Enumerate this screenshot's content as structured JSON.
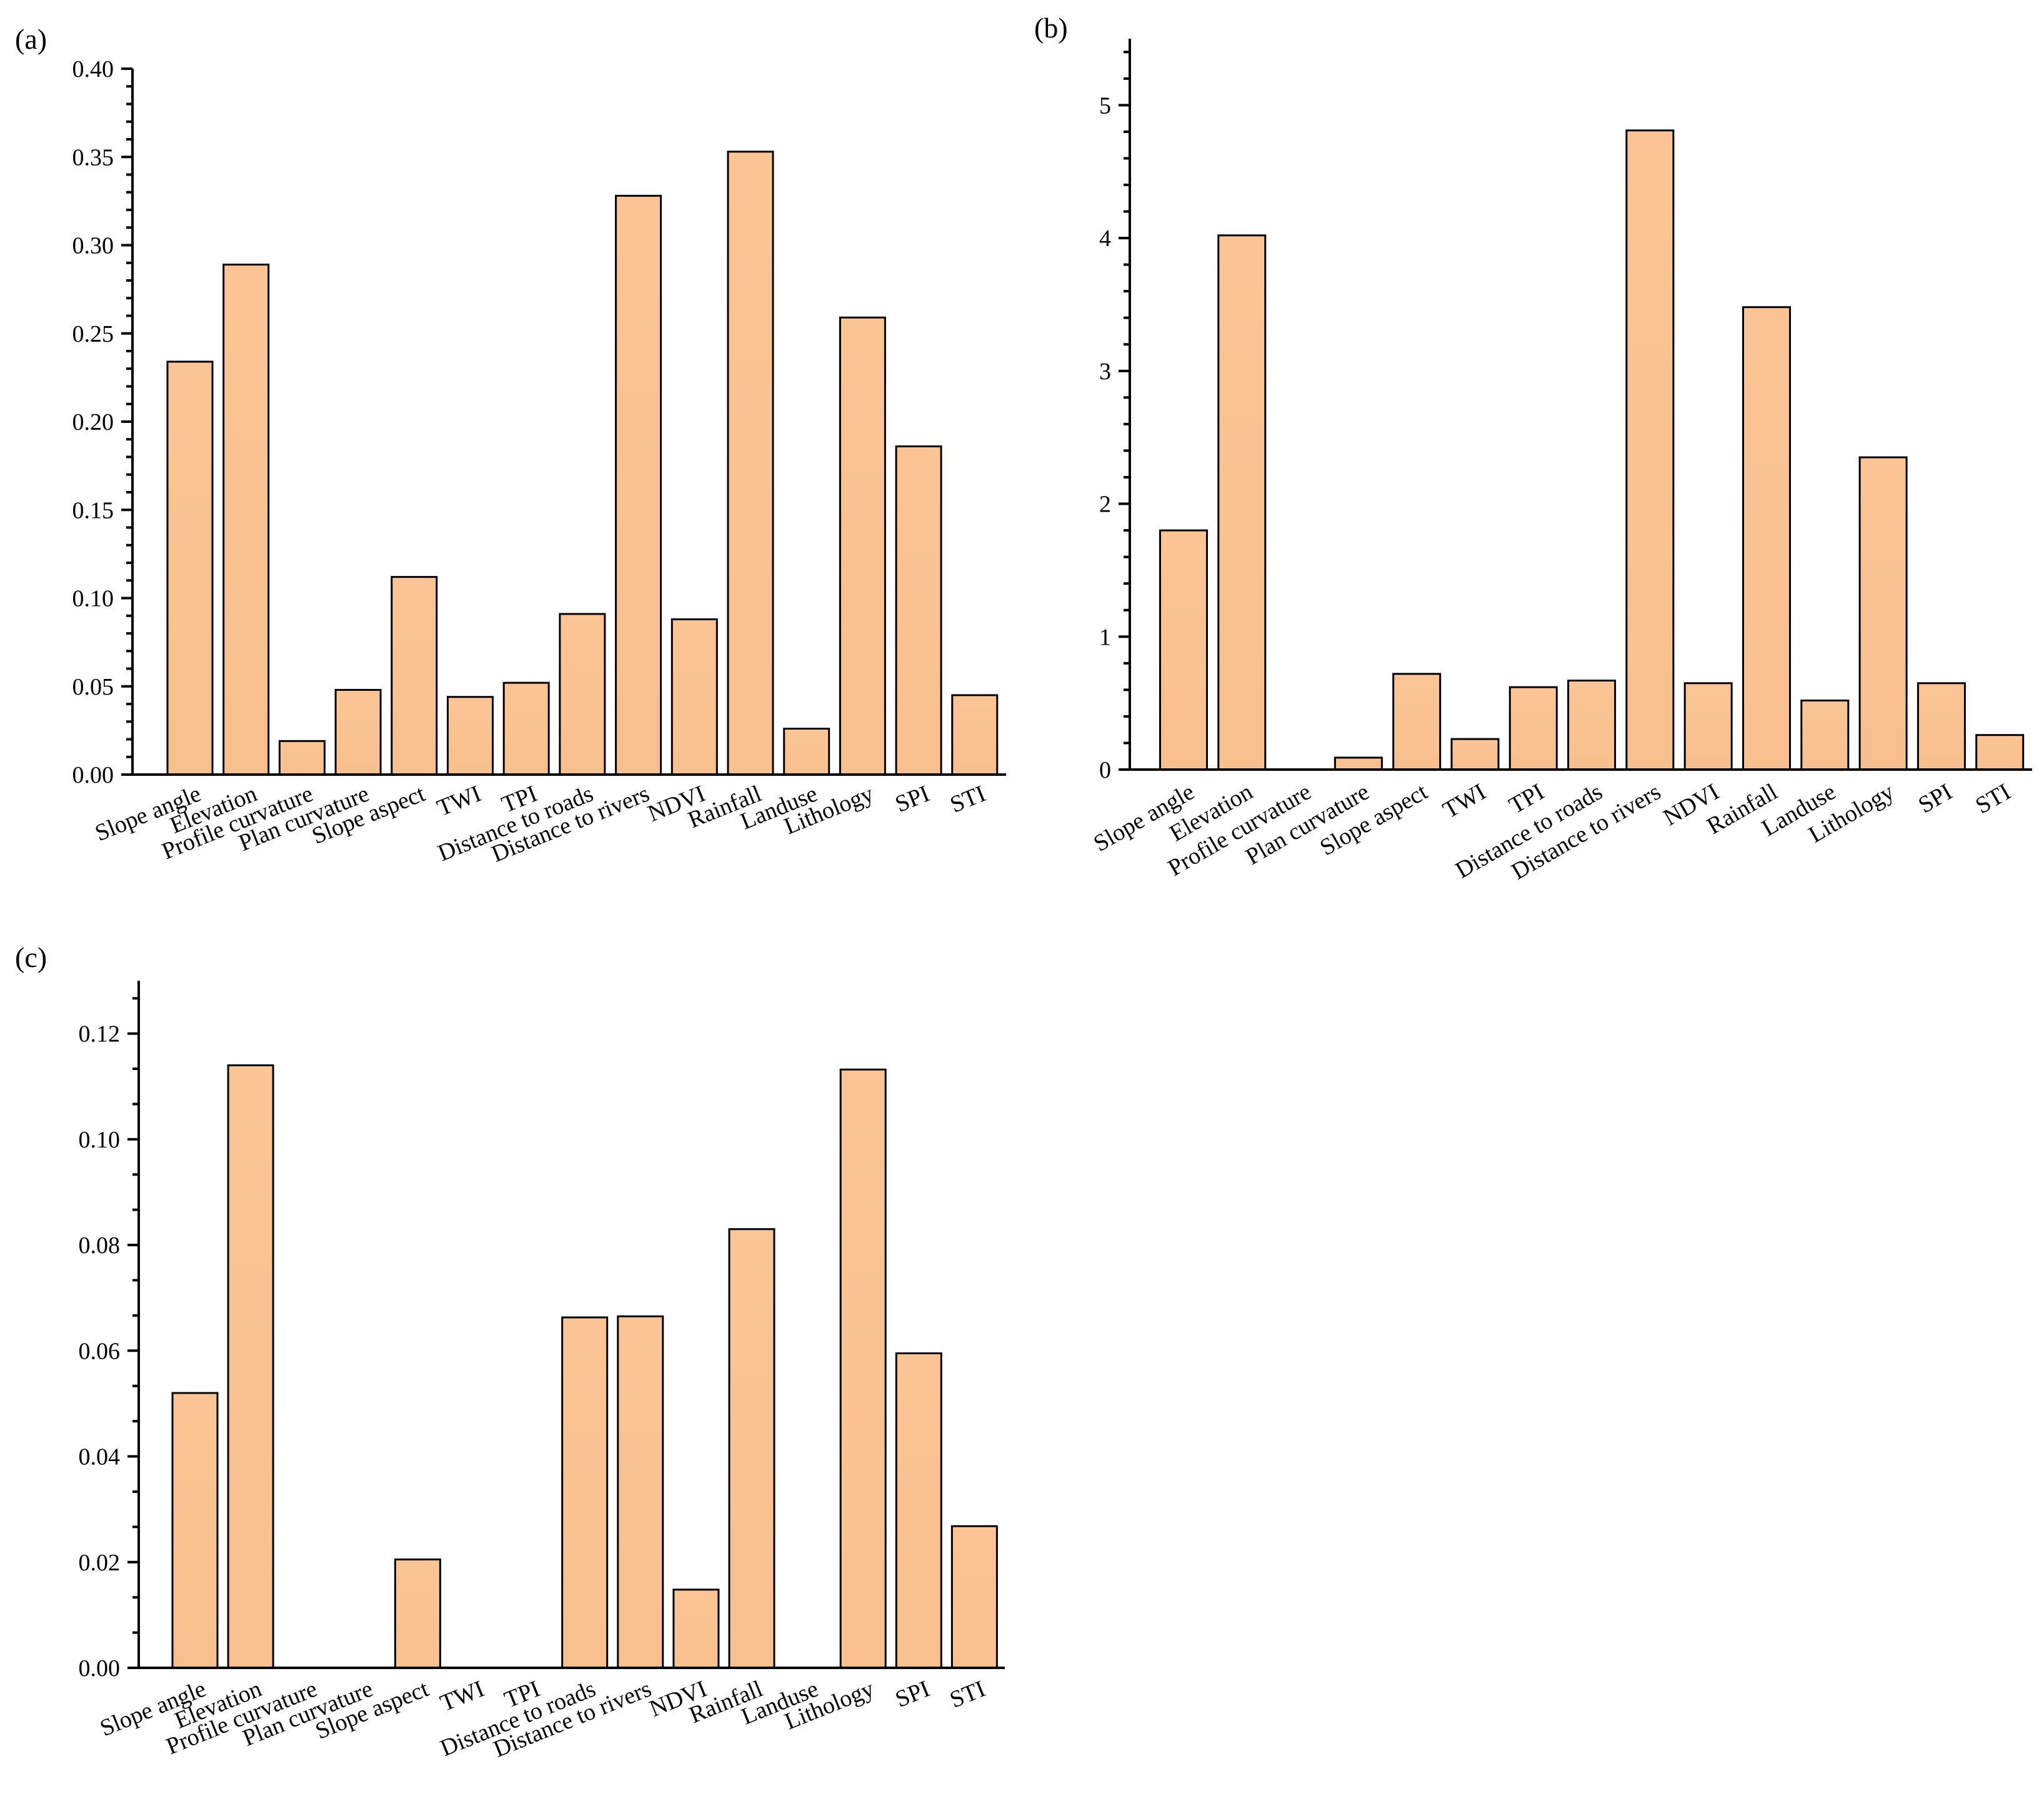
{
  "figure": {
    "bar_fill_top": "#FAC494",
    "bar_fill_bottom": "#F8C08E",
    "bar_stroke": "#000000",
    "background": "#ffffff"
  },
  "chart_data": [
    {
      "panel": "(a)",
      "type": "bar",
      "categories": [
        "Slope angle",
        "Elevation",
        "Profile curvature",
        "Plan curvature",
        "Slope aspect",
        "TWI",
        "TPI",
        "Distance to roads",
        "Distance to rivers",
        "NDVI",
        "Rainfall",
        "Landuse",
        "Lithology",
        "SPI",
        "STI"
      ],
      "values": [
        0.234,
        0.289,
        0.019,
        0.048,
        0.112,
        0.044,
        0.052,
        0.091,
        0.328,
        0.088,
        0.353,
        0.026,
        0.259,
        0.186,
        0.045
      ],
      "ylim": [
        0,
        0.4
      ],
      "yticks": [
        "0.00",
        "0.05",
        "0.10",
        "0.15",
        "0.20",
        "0.25",
        "0.30",
        "0.35",
        "0.40"
      ],
      "ytick_values": [
        0,
        0.05,
        0.1,
        0.15,
        0.2,
        0.25,
        0.3,
        0.35,
        0.4
      ],
      "title": "",
      "xlabel": "",
      "ylabel": ""
    },
    {
      "panel": "(b)",
      "type": "bar",
      "categories": [
        "Slope angle",
        "Elevation",
        "Profile curvature",
        "Plan curvature",
        "Slope aspect",
        "TWI",
        "TPI",
        "Distance to roads",
        "Distance to rivers",
        "NDVI",
        "Rainfall",
        "Landuse",
        "Lithology",
        "SPI",
        "STI"
      ],
      "values": [
        1.8,
        4.02,
        0.0,
        0.09,
        0.72,
        0.23,
        0.62,
        0.67,
        4.81,
        0.65,
        3.48,
        0.52,
        2.35,
        0.65,
        0.26
      ],
      "ylim": [
        0,
        5.5
      ],
      "yticks": [
        "0",
        "1",
        "2",
        "3",
        "4",
        "5"
      ],
      "ytick_values": [
        0,
        1,
        2,
        3,
        4,
        5
      ],
      "title": "",
      "xlabel": "",
      "ylabel": ""
    },
    {
      "panel": "(c)",
      "type": "bar",
      "categories": [
        "Slope angle",
        "Elevation",
        "Profile curvature",
        "Plan curvature",
        "Slope aspect",
        "TWI",
        "TPI",
        "Distance to roads",
        "Distance to rivers",
        "NDVI",
        "Rainfall",
        "Landuse",
        "Lithology",
        "SPI",
        "STI"
      ],
      "values": [
        0.052,
        0.114,
        0.0,
        0.0,
        0.0205,
        0.0,
        0.0,
        0.0663,
        0.0665,
        0.0148,
        0.083,
        0.0,
        0.1132,
        0.0595,
        0.0268
      ],
      "ylim": [
        0,
        0.13
      ],
      "yticks": [
        "0.00",
        "0.02",
        "0.04",
        "0.06",
        "0.08",
        "0.10",
        "0.12"
      ],
      "ytick_values": [
        0,
        0.02,
        0.04,
        0.06,
        0.08,
        0.1,
        0.12
      ],
      "title": "",
      "xlabel": "",
      "ylabel": ""
    }
  ]
}
